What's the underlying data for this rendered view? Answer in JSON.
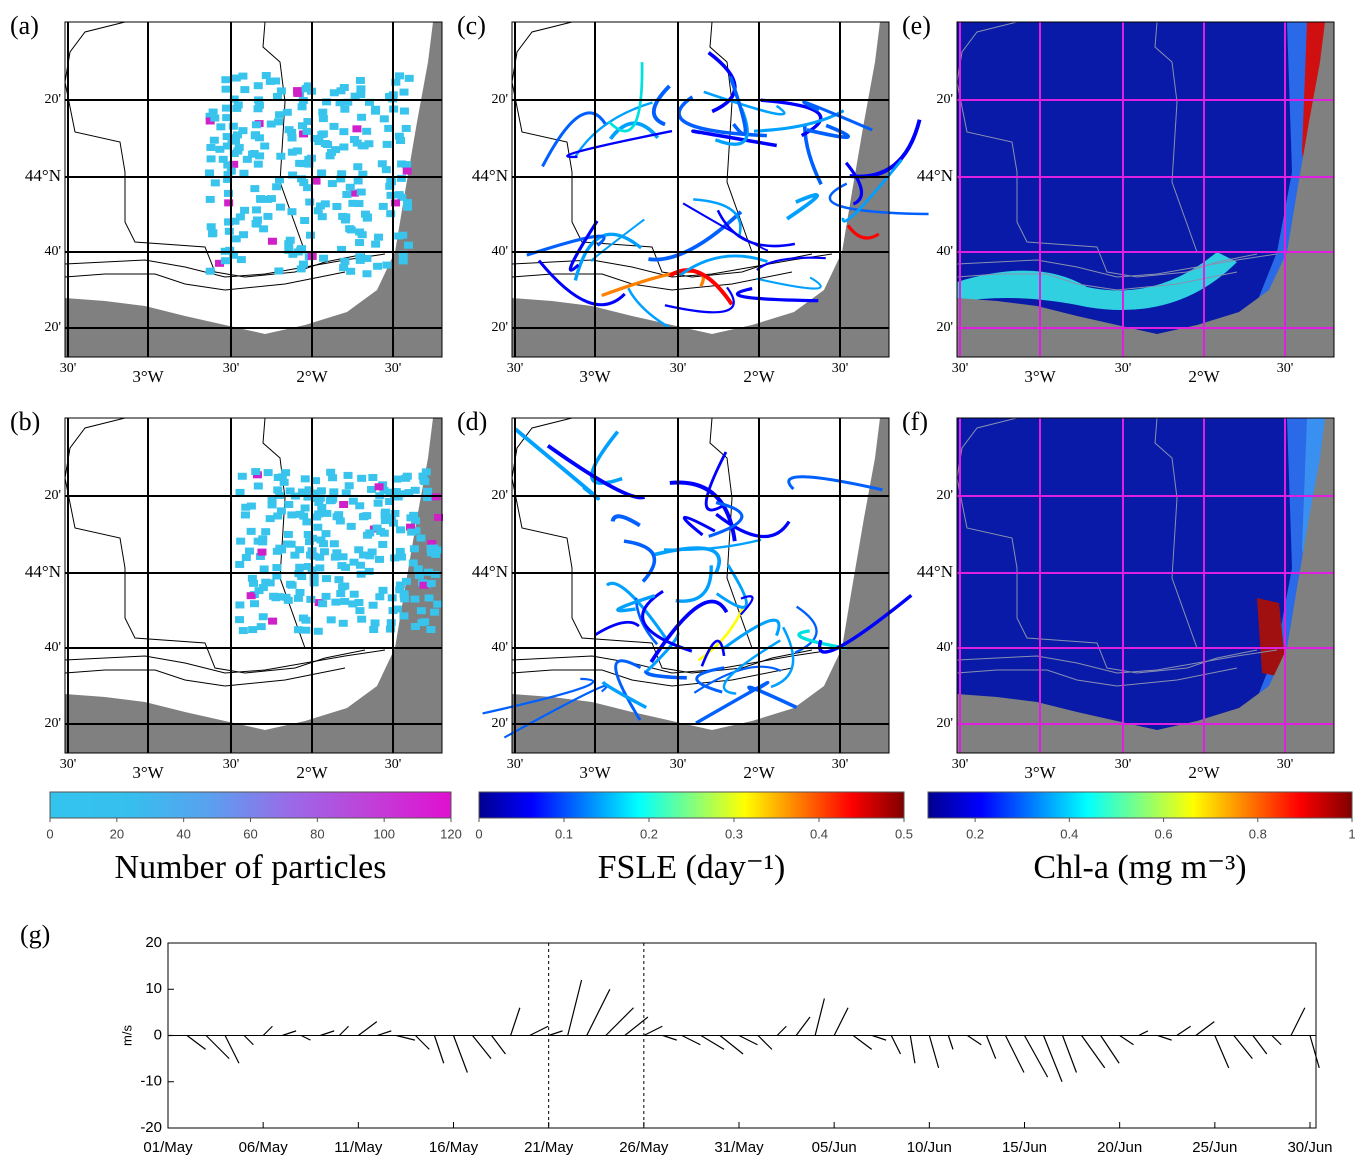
{
  "map_axes": {
    "lat_labels": [
      "20'",
      "44°N",
      "40'",
      "20'"
    ],
    "lon_labels": [
      "30'",
      "3°W",
      "30'",
      "2°W",
      "30'"
    ]
  },
  "maps": [
    {
      "label": "(a)",
      "grid_color": "#000000",
      "style": "particles"
    },
    {
      "label": "(c)",
      "grid_color": "#000000",
      "style": "fsle"
    },
    {
      "label": "(e)",
      "grid_color": "#e020e0",
      "style": "chl"
    },
    {
      "label": "(b)",
      "grid_color": "#000000",
      "style": "particles"
    },
    {
      "label": "(d)",
      "grid_color": "#000000",
      "style": "fsle"
    },
    {
      "label": "(f)",
      "grid_color": "#e020e0",
      "style": "chl"
    }
  ],
  "colorbars": [
    {
      "label": "Number of particles",
      "lim": [
        0,
        120
      ],
      "ticks": [
        0,
        20,
        40,
        60,
        80,
        100,
        120
      ],
      "colors": [
        "#33c4ee",
        "#36bfee",
        "#5aa0ee",
        "#9a6ae8",
        "#c040d8",
        "#e010d0"
      ]
    },
    {
      "label": "FSLE (day⁻¹)",
      "lim": [
        0,
        0.5
      ],
      "ticks": [
        0,
        0.1,
        0.2,
        0.3,
        0.4,
        0.5
      ],
      "colors": [
        "#00008f",
        "#0000ff",
        "#0080ff",
        "#00ffff",
        "#80ff80",
        "#ffff00",
        "#ff8000",
        "#ff0000",
        "#800000"
      ]
    },
    {
      "label": "Chl-a (mg m⁻³)",
      "lim": [
        0.1,
        1
      ],
      "ticks": [
        0.2,
        0.4,
        0.6,
        0.8,
        1
      ],
      "colors": [
        "#00008f",
        "#0000ff",
        "#0080ff",
        "#00ffff",
        "#80ff80",
        "#ffff00",
        "#ff8000",
        "#ff0000",
        "#800000"
      ]
    }
  ],
  "chart_data": {
    "type": "stick",
    "panel_label": "(g)",
    "y_label": "m/s",
    "x": [
      "01/May",
      "02/May",
      "03/May",
      "04/May",
      "05/May",
      "06/May",
      "07/May",
      "08/May",
      "09/May",
      "10/May",
      "11/May",
      "12/May",
      "13/May",
      "14/May",
      "15/May",
      "16/May",
      "17/May",
      "18/May",
      "19/May",
      "20/May",
      "21/May",
      "22/May",
      "23/May",
      "24/May",
      "25/May",
      "26/May",
      "27/May",
      "28/May",
      "29/May",
      "30/May",
      "31/May",
      "01/Jun",
      "02/Jun",
      "03/Jun",
      "04/Jun",
      "05/Jun",
      "06/Jun",
      "07/Jun",
      "08/Jun",
      "09/Jun",
      "10/Jun",
      "11/Jun",
      "12/Jun",
      "13/Jun",
      "14/Jun",
      "15/Jun",
      "16/Jun",
      "17/Jun",
      "18/Jun",
      "19/Jun",
      "20/Jun",
      "21/Jun",
      "22/Jun",
      "23/Jun",
      "24/Jun",
      "25/Jun",
      "26/Jun",
      "27/Jun",
      "28/Jun",
      "29/Jun",
      "30/Jun"
    ],
    "u": [
      1,
      4,
      5,
      3,
      2,
      2,
      3,
      2,
      3,
      2,
      4,
      3,
      4,
      3,
      2,
      3,
      4,
      3,
      2,
      4,
      3,
      3,
      5,
      6,
      5,
      4,
      3,
      4,
      5,
      5,
      4,
      3,
      2,
      3,
      2,
      3,
      4,
      3,
      2,
      1,
      2,
      1,
      3,
      2,
      4,
      5,
      4,
      3,
      5,
      4,
      3,
      2,
      3,
      3,
      4,
      3,
      4,
      3,
      2,
      3,
      2
    ],
    "v": [
      0,
      -3,
      -5,
      -6,
      -2,
      2,
      1,
      -1,
      1,
      2,
      3,
      1,
      -1,
      -3,
      -6,
      -8,
      -5,
      -4,
      6,
      2,
      1,
      12,
      10,
      6,
      4,
      2,
      -1,
      -2,
      -3,
      -4,
      -2,
      -3,
      2,
      4,
      8,
      6,
      -3,
      -1,
      -4,
      -6,
      -7,
      -3,
      -2,
      -5,
      -8,
      -9,
      -10,
      -8,
      -7,
      -6,
      -2,
      1,
      -1,
      2,
      3,
      -7,
      -5,
      -4,
      -2,
      6,
      -7
    ],
    "xticks": [
      "01/May",
      "06/May",
      "11/May",
      "16/May",
      "21/May",
      "26/May",
      "31/May",
      "05/Jun",
      "10/Jun",
      "15/Jun",
      "20/Jun",
      "25/Jun",
      "30/Jun"
    ],
    "vlines": [
      "21/May",
      "26/May"
    ],
    "ylim": [
      -20,
      20
    ],
    "yticks": [
      -20,
      -10,
      0,
      10,
      20
    ],
    "color": "#000000"
  }
}
